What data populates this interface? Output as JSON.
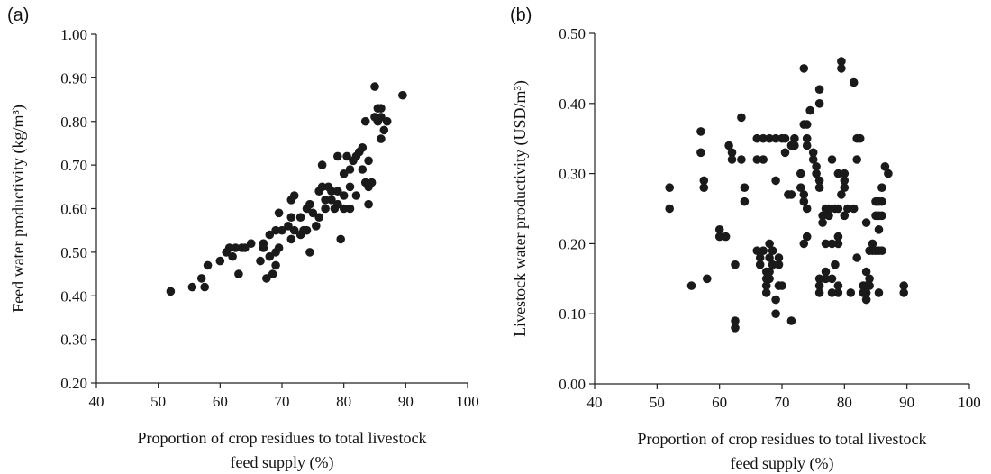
{
  "chart_data": [
    {
      "type": "scatter",
      "panel": "(a)",
      "title": "",
      "xlabel": "Proportion of crop residues to total livestock feed supply (%)",
      "xlabel_lines": [
        "Proportion of crop residues to total livestock",
        "feed supply (%)"
      ],
      "ylabel": "Feed water productivity (kg/m³)",
      "xlim": [
        40,
        100
      ],
      "ylim": [
        0.2,
        1.0
      ],
      "xticks": [
        "40",
        "50",
        "60",
        "70",
        "80",
        "90",
        "100"
      ],
      "yticks": [
        "0.20",
        "0.30",
        "0.40",
        "0.50",
        "0.60",
        "0.70",
        "0.80",
        "0.90",
        "1.00"
      ],
      "grid": false,
      "legend": "none",
      "marker_color": "#1a1a1a",
      "points": [
        [
          52,
          0.41
        ],
        [
          55.5,
          0.42
        ],
        [
          57,
          0.44
        ],
        [
          57.5,
          0.42
        ],
        [
          58,
          0.47
        ],
        [
          60,
          0.48
        ],
        [
          61,
          0.5
        ],
        [
          61.5,
          0.51
        ],
        [
          62,
          0.49
        ],
        [
          62.5,
          0.51
        ],
        [
          63,
          0.45
        ],
        [
          63.5,
          0.51
        ],
        [
          64,
          0.51
        ],
        [
          65,
          0.52
        ],
        [
          66.5,
          0.48
        ],
        [
          67,
          0.52
        ],
        [
          67,
          0.51
        ],
        [
          67.5,
          0.44
        ],
        [
          68,
          0.49
        ],
        [
          68,
          0.54
        ],
        [
          68.5,
          0.45
        ],
        [
          69,
          0.47
        ],
        [
          69,
          0.5
        ],
        [
          69.5,
          0.51
        ],
        [
          69,
          0.55
        ],
        [
          69.5,
          0.59
        ],
        [
          70,
          0.55
        ],
        [
          71,
          0.56
        ],
        [
          71.5,
          0.58
        ],
        [
          71.5,
          0.62
        ],
        [
          72,
          0.63
        ],
        [
          71.5,
          0.53
        ],
        [
          72,
          0.55
        ],
        [
          73,
          0.54
        ],
        [
          73.5,
          0.55
        ],
        [
          73,
          0.58
        ],
        [
          74,
          0.55
        ],
        [
          74.5,
          0.5
        ],
        [
          74,
          0.6
        ],
        [
          74.5,
          0.61
        ],
        [
          75,
          0.59
        ],
        [
          75.5,
          0.56
        ],
        [
          76,
          0.58
        ],
        [
          76,
          0.64
        ],
        [
          76.5,
          0.65
        ],
        [
          76.5,
          0.7
        ],
        [
          77,
          0.6
        ],
        [
          77,
          0.62
        ],
        [
          77.5,
          0.65
        ],
        [
          78,
          0.62
        ],
        [
          78,
          0.64
        ],
        [
          78.5,
          0.6
        ],
        [
          79,
          0.61
        ],
        [
          79,
          0.64
        ],
        [
          79,
          0.72
        ],
        [
          79.5,
          0.53
        ],
        [
          80,
          0.6
        ],
        [
          80,
          0.63
        ],
        [
          80,
          0.68
        ],
        [
          80.5,
          0.72
        ],
        [
          81,
          0.6
        ],
        [
          81,
          0.65
        ],
        [
          81,
          0.69
        ],
        [
          81.5,
          0.71
        ],
        [
          82,
          0.63
        ],
        [
          82,
          0.72
        ],
        [
          82.5,
          0.73
        ],
        [
          83,
          0.69
        ],
        [
          83,
          0.74
        ],
        [
          83.5,
          0.66
        ],
        [
          83.5,
          0.8
        ],
        [
          84,
          0.61
        ],
        [
          84,
          0.65
        ],
        [
          84,
          0.71
        ],
        [
          84.5,
          0.66
        ],
        [
          85,
          0.81
        ],
        [
          85,
          0.88
        ],
        [
          85.5,
          0.83
        ],
        [
          85.5,
          0.8
        ],
        [
          86,
          0.76
        ],
        [
          86,
          0.81
        ],
        [
          86,
          0.83
        ],
        [
          86.5,
          0.78
        ],
        [
          87,
          0.8
        ],
        [
          89.5,
          0.86
        ]
      ]
    },
    {
      "type": "scatter",
      "panel": "(b)",
      "title": "",
      "xlabel": "Proportion of crop residues to total livestock feed supply (%)",
      "xlabel_lines": [
        "Proportion of crop residues to total livestock",
        "feed supply (%)"
      ],
      "ylabel": "Livestock water productivity (USD/m³)",
      "xlim": [
        40,
        100
      ],
      "ylim": [
        0.0,
        0.5
      ],
      "xticks": [
        "40",
        "50",
        "60",
        "70",
        "80",
        "90",
        "100"
      ],
      "yticks": [
        "0.00",
        "0.10",
        "0.20",
        "0.30",
        "0.40",
        "0.50"
      ],
      "grid": false,
      "legend": "none",
      "marker_color": "#1a1a1a",
      "points": [
        [
          52,
          0.28
        ],
        [
          52,
          0.25
        ],
        [
          55.5,
          0.14
        ],
        [
          57,
          0.36
        ],
        [
          57,
          0.33
        ],
        [
          57.5,
          0.29
        ],
        [
          57.5,
          0.28
        ],
        [
          58,
          0.15
        ],
        [
          60,
          0.22
        ],
        [
          60,
          0.21
        ],
        [
          61,
          0.21
        ],
        [
          61.5,
          0.34
        ],
        [
          62,
          0.33
        ],
        [
          62,
          0.32
        ],
        [
          62.5,
          0.09
        ],
        [
          62.5,
          0.08
        ],
        [
          62.5,
          0.17
        ],
        [
          63.5,
          0.38
        ],
        [
          63.5,
          0.32
        ],
        [
          64,
          0.28
        ],
        [
          64,
          0.26
        ],
        [
          66,
          0.35
        ],
        [
          66,
          0.32
        ],
        [
          66,
          0.19
        ],
        [
          66.5,
          0.18
        ],
        [
          66.5,
          0.17
        ],
        [
          67,
          0.35
        ],
        [
          67,
          0.32
        ],
        [
          67,
          0.19
        ],
        [
          67.5,
          0.16
        ],
        [
          67.5,
          0.14
        ],
        [
          67.5,
          0.15
        ],
        [
          67.5,
          0.13
        ],
        [
          68,
          0.35
        ],
        [
          68,
          0.2
        ],
        [
          68,
          0.18
        ],
        [
          68,
          0.16
        ],
        [
          68,
          0.15
        ],
        [
          68.5,
          0.19
        ],
        [
          68.5,
          0.17
        ],
        [
          69,
          0.35
        ],
        [
          69,
          0.29
        ],
        [
          69,
          0.12
        ],
        [
          69,
          0.1
        ],
        [
          69.5,
          0.18
        ],
        [
          69.5,
          0.17
        ],
        [
          69.5,
          0.14
        ],
        [
          70,
          0.35
        ],
        [
          70,
          0.14
        ],
        [
          70.5,
          0.33
        ],
        [
          70.5,
          0.35
        ],
        [
          71,
          0.27
        ],
        [
          71.5,
          0.34
        ],
        [
          71.5,
          0.27
        ],
        [
          71.5,
          0.09
        ],
        [
          72,
          0.35
        ],
        [
          72,
          0.34
        ],
        [
          73,
          0.3
        ],
        [
          73,
          0.28
        ],
        [
          73.5,
          0.45
        ],
        [
          73.5,
          0.37
        ],
        [
          73.5,
          0.27
        ],
        [
          73.5,
          0.26
        ],
        [
          73.5,
          0.2
        ],
        [
          74,
          0.35
        ],
        [
          74,
          0.34
        ],
        [
          74,
          0.25
        ],
        [
          74,
          0.21
        ],
        [
          74,
          0.37
        ],
        [
          74.5,
          0.39
        ],
        [
          75,
          0.32
        ],
        [
          75,
          0.33
        ],
        [
          75.5,
          0.31
        ],
        [
          75.5,
          0.3
        ],
        [
          76,
          0.42
        ],
        [
          76,
          0.4
        ],
        [
          76,
          0.29
        ],
        [
          76,
          0.28
        ],
        [
          76,
          0.15
        ],
        [
          76,
          0.14
        ],
        [
          76,
          0.13
        ],
        [
          76.5,
          0.24
        ],
        [
          76.5,
          0.23
        ],
        [
          77,
          0.25
        ],
        [
          77,
          0.2
        ],
        [
          77,
          0.16
        ],
        [
          77,
          0.15
        ],
        [
          77.5,
          0.25
        ],
        [
          77.5,
          0.24
        ],
        [
          78,
          0.32
        ],
        [
          78,
          0.2
        ],
        [
          78,
          0.15
        ],
        [
          78,
          0.13
        ],
        [
          78.5,
          0.25
        ],
        [
          78.5,
          0.17
        ],
        [
          79,
          0.3
        ],
        [
          79,
          0.25
        ],
        [
          79,
          0.21
        ],
        [
          79,
          0.2
        ],
        [
          79,
          0.14
        ],
        [
          79,
          0.13
        ],
        [
          79.5,
          0.46
        ],
        [
          79.5,
          0.45
        ],
        [
          79.5,
          0.27
        ],
        [
          80,
          0.3
        ],
        [
          80,
          0.29
        ],
        [
          80,
          0.28
        ],
        [
          80,
          0.24
        ],
        [
          80.5,
          0.25
        ],
        [
          81,
          0.13
        ],
        [
          81.5,
          0.43
        ],
        [
          81.5,
          0.25
        ],
        [
          82,
          0.35
        ],
        [
          82,
          0.32
        ],
        [
          82,
          0.18
        ],
        [
          82.5,
          0.35
        ],
        [
          83,
          0.14
        ],
        [
          83,
          0.13
        ],
        [
          83.5,
          0.23
        ],
        [
          83.5,
          0.16
        ],
        [
          83.5,
          0.14
        ],
        [
          83.5,
          0.13
        ],
        [
          83.5,
          0.12
        ],
        [
          84,
          0.19
        ],
        [
          84,
          0.15
        ],
        [
          84,
          0.14
        ],
        [
          84.5,
          0.2
        ],
        [
          84.5,
          0.19
        ],
        [
          85,
          0.26
        ],
        [
          85,
          0.24
        ],
        [
          85,
          0.19
        ],
        [
          85.5,
          0.26
        ],
        [
          85.5,
          0.24
        ],
        [
          85.5,
          0.22
        ],
        [
          85.5,
          0.19
        ],
        [
          85.5,
          0.13
        ],
        [
          86,
          0.28
        ],
        [
          86,
          0.26
        ],
        [
          86,
          0.24
        ],
        [
          86,
          0.19
        ],
        [
          86.5,
          0.31
        ],
        [
          87,
          0.3
        ],
        [
          89.5,
          0.14
        ],
        [
          89.5,
          0.13
        ]
      ]
    }
  ]
}
